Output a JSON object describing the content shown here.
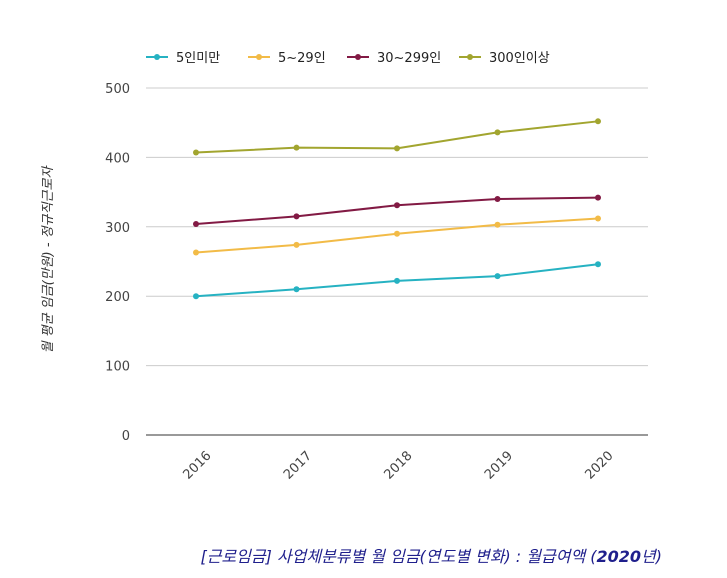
{
  "chart_data": {
    "type": "line",
    "title": "",
    "xlabel": "",
    "ylabel": "월 평균 임금(만원) - 정규직근로자",
    "categories": [
      "2016",
      "2017",
      "2018",
      "2019",
      "2020"
    ],
    "ylim": [
      0,
      500
    ],
    "yticks": [
      "0",
      "100",
      "200",
      "300",
      "400",
      "500"
    ],
    "legend_position": "top-left",
    "grid": true,
    "series": [
      {
        "name": "5인미만",
        "color": "#26b2c2",
        "values": [
          200,
          210,
          222,
          229,
          246
        ]
      },
      {
        "name": "5~29인",
        "color": "#f2bb47",
        "values": [
          263,
          274,
          290,
          303,
          312
        ]
      },
      {
        "name": "30~299인",
        "color": "#821a44",
        "values": [
          304,
          315,
          331,
          340,
          342
        ]
      },
      {
        "name": "300인이상",
        "color": "#a2a52f",
        "values": [
          407,
          414,
          413,
          436,
          452
        ]
      }
    ]
  },
  "caption": {
    "text": "[근로임금] 사업체분류별 월 임금(연도별 변화) : 월급여액 (",
    "year": "2020",
    "suffix": "년)"
  },
  "colors": {
    "grid": "#cccccc",
    "axis": "#333333",
    "tick_text": "#444444",
    "caption": "#1f1f8c"
  }
}
